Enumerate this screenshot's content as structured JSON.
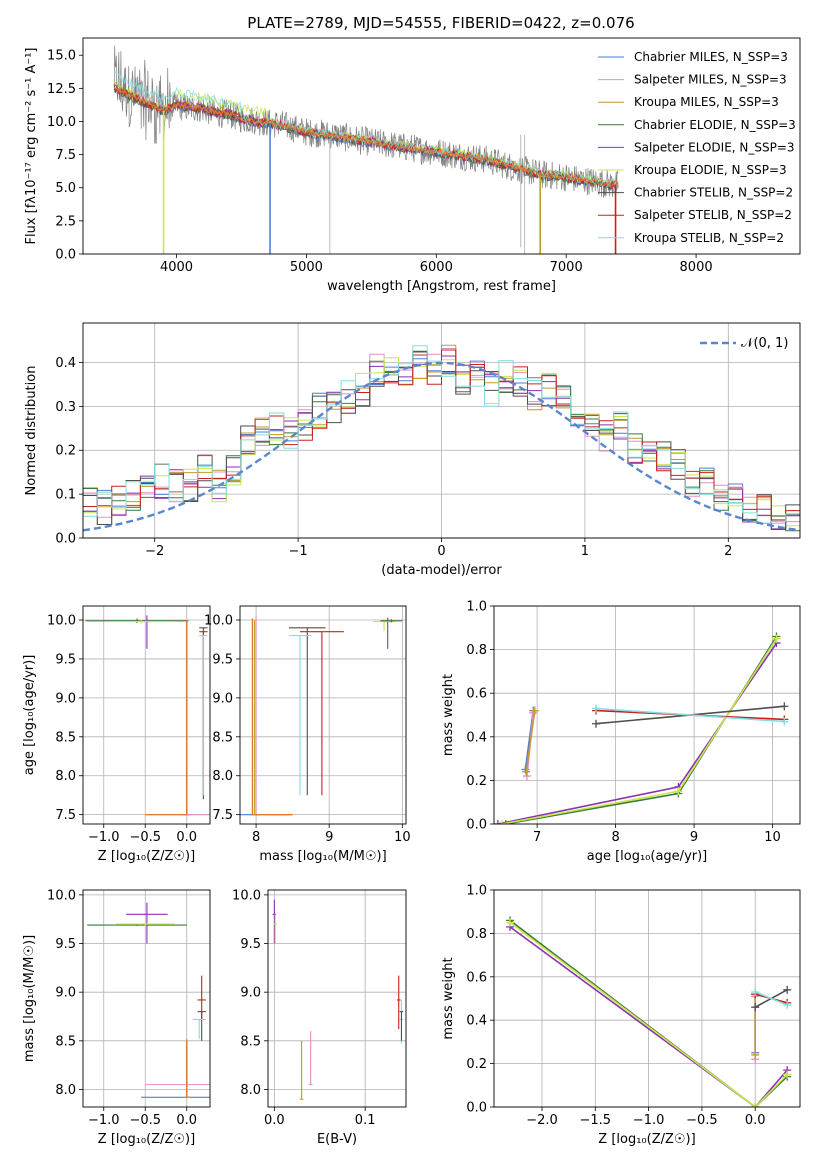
{
  "figure": {
    "title": "PLATE=2789, MJD=54555, FIBERID=0422, z=0.076"
  },
  "colors": {
    "Chabrier MILES": "#4f7fd0",
    "Salpeter MILES": "#e28fc4",
    "Kroupa MILES": "#c09a2a",
    "Chabrier ELODIE": "#3a7a3a",
    "Salpeter ELODIE": "#8e2fb0",
    "Kroupa ELODIE": "#c8e84a",
    "Chabrier STELIB": "#4f4f4f",
    "Salpeter STELIB": "#c8201c",
    "Kroupa STELIB": "#82dede",
    "data": "#808080",
    "model_main": "#e07a2e",
    "gaussian": "#5a86d0",
    "grid": "#b0b0b0"
  },
  "chart_data": [
    {
      "id": "spectrum",
      "type": "line",
      "title": "PLATE=2789, MJD=54555, FIBERID=0422, z=0.076",
      "xlabel": "wavelength [Angstrom, rest frame]",
      "ylabel": "Flux [fλ10⁻¹⁷ erg cm⁻² s⁻¹ A⁻¹]",
      "xlim": [
        3280,
        8800
      ],
      "ylim": [
        0,
        16.3
      ],
      "xticks": [
        4000,
        5000,
        6000,
        7000,
        8000
      ],
      "yticks": [
        0.0,
        2.5,
        5.0,
        7.5,
        10.0,
        12.5,
        15.0
      ],
      "grid": false,
      "legend_position": "upper right",
      "legend": [
        "Chabrier MILES, N_SSP=3",
        "Salpeter MILES, N_SSP=3",
        "Kroupa MILES, N_SSP=3",
        "Chabrier ELODIE, N_SSP=3",
        "Salpeter ELODIE, N_SSP=3",
        "Kroupa ELODIE, N_SSP=3",
        "Chabrier STELIB, N_SSP=2",
        "Salpeter STELIB, N_SSP=2",
        "Kroupa STELIB, N_SSP=2"
      ],
      "data_series": {
        "name": "",
        "x": [
          3520,
          3600,
          3700,
          3800,
          3900,
          4000,
          4100,
          4200,
          4300,
          4400,
          4500,
          4600,
          4700,
          4800,
          4900,
          5000,
          5200,
          5400,
          5600,
          5800,
          6000,
          6200,
          6400,
          6500,
          6600,
          6700,
          6800,
          6900,
          7000,
          7100,
          7200,
          7300,
          7400
        ],
        "y": [
          13.0,
          12.3,
          11.8,
          11.3,
          10.8,
          11.2,
          11.0,
          11.0,
          10.6,
          10.6,
          10.2,
          10.1,
          9.9,
          9.8,
          9.5,
          9.2,
          9.0,
          8.6,
          8.3,
          8.0,
          7.7,
          7.4,
          7.1,
          6.8,
          6.5,
          6.3,
          6.0,
          5.9,
          5.8,
          5.6,
          5.5,
          5.3,
          5.2
        ]
      },
      "model_series": {
        "name": "",
        "x": [
          3520,
          3600,
          3700,
          3800,
          3900,
          4000,
          4100,
          4200,
          4300,
          4400,
          4500,
          4600,
          4700,
          4800,
          4900,
          5000,
          5200,
          5400,
          5600,
          5800,
          6000,
          6200,
          6400,
          6500,
          6600,
          6700,
          6800,
          6900,
          7000,
          7100,
          7200,
          7300,
          7400
        ],
        "y": [
          12.6,
          12.2,
          11.7,
          11.3,
          10.8,
          11.3,
          11.1,
          11.0,
          10.7,
          10.6,
          10.2,
          10.0,
          9.9,
          9.7,
          9.5,
          9.2,
          8.95,
          8.6,
          8.3,
          8.0,
          7.7,
          7.4,
          7.1,
          6.8,
          6.6,
          6.3,
          6.0,
          5.9,
          5.8,
          5.6,
          5.5,
          5.3,
          5.2
        ]
      },
      "drops": [
        {
          "x": 3900,
          "to": 0.0,
          "series": "Kroupa ELODIE"
        },
        {
          "x": 4720,
          "to": 0.0,
          "series": "Chabrier MILES"
        },
        {
          "x": 6800,
          "to": 0.0,
          "series": "Kroupa MILES"
        },
        {
          "x": 7380,
          "to": 0.0,
          "series": "Salpeter STELIB"
        }
      ]
    },
    {
      "id": "residuals",
      "type": "histogram",
      "xlabel": "(data-model)/error",
      "ylabel": "Normed distribution",
      "xlim": [
        -2.5,
        2.5
      ],
      "ylim": [
        0,
        0.49
      ],
      "xticks": [
        -2,
        -1,
        0,
        1,
        2
      ],
      "yticks": [
        0.0,
        0.1,
        0.2,
        0.3,
        0.4
      ],
      "grid": true,
      "legend_position": "upper right",
      "legend": [
        "𝒩(0, 1)"
      ],
      "bin_edges_start": -2.5,
      "bin_width": 0.1,
      "base_profile": [
        0.08,
        0.07,
        0.09,
        0.1,
        0.11,
        0.13,
        0.12,
        0.12,
        0.15,
        0.12,
        0.15,
        0.22,
        0.24,
        0.25,
        0.24,
        0.26,
        0.29,
        0.3,
        0.32,
        0.34,
        0.38,
        0.39,
        0.37,
        0.4,
        0.38,
        0.4,
        0.36,
        0.38,
        0.34,
        0.37,
        0.35,
        0.33,
        0.34,
        0.31,
        0.29,
        0.26,
        0.23,
        0.25,
        0.2,
        0.19,
        0.18,
        0.17,
        0.12,
        0.13,
        0.1,
        0.1,
        0.07,
        0.06,
        0.05,
        0.04
      ],
      "gaussian": {
        "mean": 0,
        "sigma": 1
      }
    },
    {
      "id": "Z-age",
      "type": "scatter",
      "xlabel": "Z [log₁₀(Z/Z☉)]",
      "ylabel": "age  [log₁₀(age/yr)]",
      "xlim": [
        -1.25,
        0.28
      ],
      "ylim": [
        7.38,
        10.18
      ],
      "xticks": [
        -1.0,
        -0.5,
        0.0
      ],
      "yticks": [
        7.5,
        8.0,
        8.5,
        9.0,
        9.5,
        10.0
      ],
      "grid": true
    },
    {
      "id": "mass-age",
      "type": "scatter",
      "xlabel": "mass [log₁₀(M/M☉)]",
      "ylabel": "",
      "xlim": [
        7.78,
        10.05
      ],
      "ylim": [
        7.38,
        10.18
      ],
      "xticks": [
        8,
        9,
        10
      ],
      "yticks": [
        7.5,
        8.0,
        8.5,
        9.0,
        9.5,
        10.0
      ],
      "grid": true
    },
    {
      "id": "age-weight",
      "type": "line",
      "xlabel": "age  [log₁₀(age/yr)]",
      "ylabel": "mass weight",
      "xlim": [
        6.45,
        10.35
      ],
      "ylim": [
        0,
        1
      ],
      "xticks": [
        7,
        8,
        9,
        10
      ],
      "yticks": [
        0.0,
        0.2,
        0.4,
        0.6,
        0.8,
        1.0
      ],
      "grid": true,
      "series": [
        {
          "color_key": "Chabrier MILES",
          "x": [
            6.85,
            6.95
          ],
          "y": [
            0.25,
            0.52
          ]
        },
        {
          "color_key": "Salpeter MILES",
          "x": [
            6.87,
            6.95
          ],
          "y": [
            0.22,
            0.51
          ]
        },
        {
          "color_key": "Kroupa MILES",
          "x": [
            6.86,
            6.97
          ],
          "y": [
            0.24,
            0.52
          ]
        },
        {
          "color_key": "Chabrier ELODIE",
          "x": [
            6.6,
            8.8,
            10.05
          ],
          "y": [
            0.0,
            0.14,
            0.86
          ]
        },
        {
          "color_key": "Salpeter ELODIE",
          "x": [
            6.5,
            8.8,
            10.05
          ],
          "y": [
            0.0,
            0.17,
            0.83
          ]
        },
        {
          "color_key": "Kroupa ELODIE",
          "x": [
            6.55,
            8.8,
            10.05
          ],
          "y": [
            0.0,
            0.15,
            0.85
          ]
        },
        {
          "color_key": "Chabrier STELIB",
          "x": [
            7.75,
            10.15
          ],
          "y": [
            0.46,
            0.54
          ]
        },
        {
          "color_key": "Salpeter STELIB",
          "x": [
            7.75,
            10.15
          ],
          "y": [
            0.52,
            0.48
          ]
        },
        {
          "color_key": "Kroupa STELIB",
          "x": [
            7.75,
            10.15
          ],
          "y": [
            0.53,
            0.47
          ]
        }
      ]
    },
    {
      "id": "Z-mass",
      "type": "scatter",
      "xlabel": "Z [log₁₀(Z/Z☉)]",
      "ylabel": "mass [log₁₀(M/M☉)]",
      "xlim": [
        -1.25,
        0.28
      ],
      "ylim": [
        7.82,
        10.05
      ],
      "xticks": [
        -1.0,
        -0.5,
        0.0
      ],
      "yticks": [
        8.0,
        8.5,
        9.0,
        9.5,
        10.0
      ],
      "grid": true
    },
    {
      "id": "ebv-mass",
      "type": "scatter",
      "xlabel": "E(B-V)",
      "ylabel": "",
      "xlim": [
        -0.007,
        0.145
      ],
      "ylim": [
        7.82,
        10.05
      ],
      "xticks": [
        0.0,
        0.1
      ],
      "yticks": [
        8.0,
        8.5,
        9.0,
        9.5,
        10.0
      ],
      "grid": true
    },
    {
      "id": "Z-weight",
      "type": "line",
      "xlabel": "Z [log₁₀(Z/Z☉)]",
      "ylabel": "mass weight",
      "xlim": [
        -2.45,
        0.42
      ],
      "ylim": [
        0,
        1
      ],
      "xticks": [
        -2.0,
        -1.5,
        -1.0,
        -0.5,
        0.0
      ],
      "yticks": [
        0.0,
        0.2,
        0.4,
        0.6,
        0.8,
        1.0
      ],
      "grid": true,
      "series": [
        {
          "color_key": "Chabrier ELODIE",
          "x": [
            -2.3,
            0.0,
            0.3
          ],
          "y": [
            0.86,
            0.0,
            0.14
          ]
        },
        {
          "color_key": "Salpeter ELODIE",
          "x": [
            -2.3,
            0.0,
            0.3
          ],
          "y": [
            0.83,
            0.0,
            0.17
          ]
        },
        {
          "color_key": "Kroupa ELODIE",
          "x": [
            -2.3,
            0.0,
            0.3
          ],
          "y": [
            0.85,
            0.0,
            0.15
          ]
        },
        {
          "color_key": "Chabrier MILES",
          "x": [
            0.0,
            0.0
          ],
          "y": [
            0.25,
            0.52
          ]
        },
        {
          "color_key": "Salpeter MILES",
          "x": [
            0.0,
            0.0
          ],
          "y": [
            0.22,
            0.51
          ]
        },
        {
          "color_key": "Kroupa MILES",
          "x": [
            0.0,
            0.0
          ],
          "y": [
            0.24,
            0.52
          ]
        },
        {
          "color_key": "Chabrier STELIB",
          "x": [
            0.0,
            0.3
          ],
          "y": [
            0.46,
            0.54
          ]
        },
        {
          "color_key": "Salpeter STELIB",
          "x": [
            0.0,
            0.3
          ],
          "y": [
            0.52,
            0.48
          ]
        },
        {
          "color_key": "Kroupa STELIB",
          "x": [
            0.0,
            0.3
          ],
          "y": [
            0.53,
            0.47
          ]
        }
      ]
    }
  ]
}
